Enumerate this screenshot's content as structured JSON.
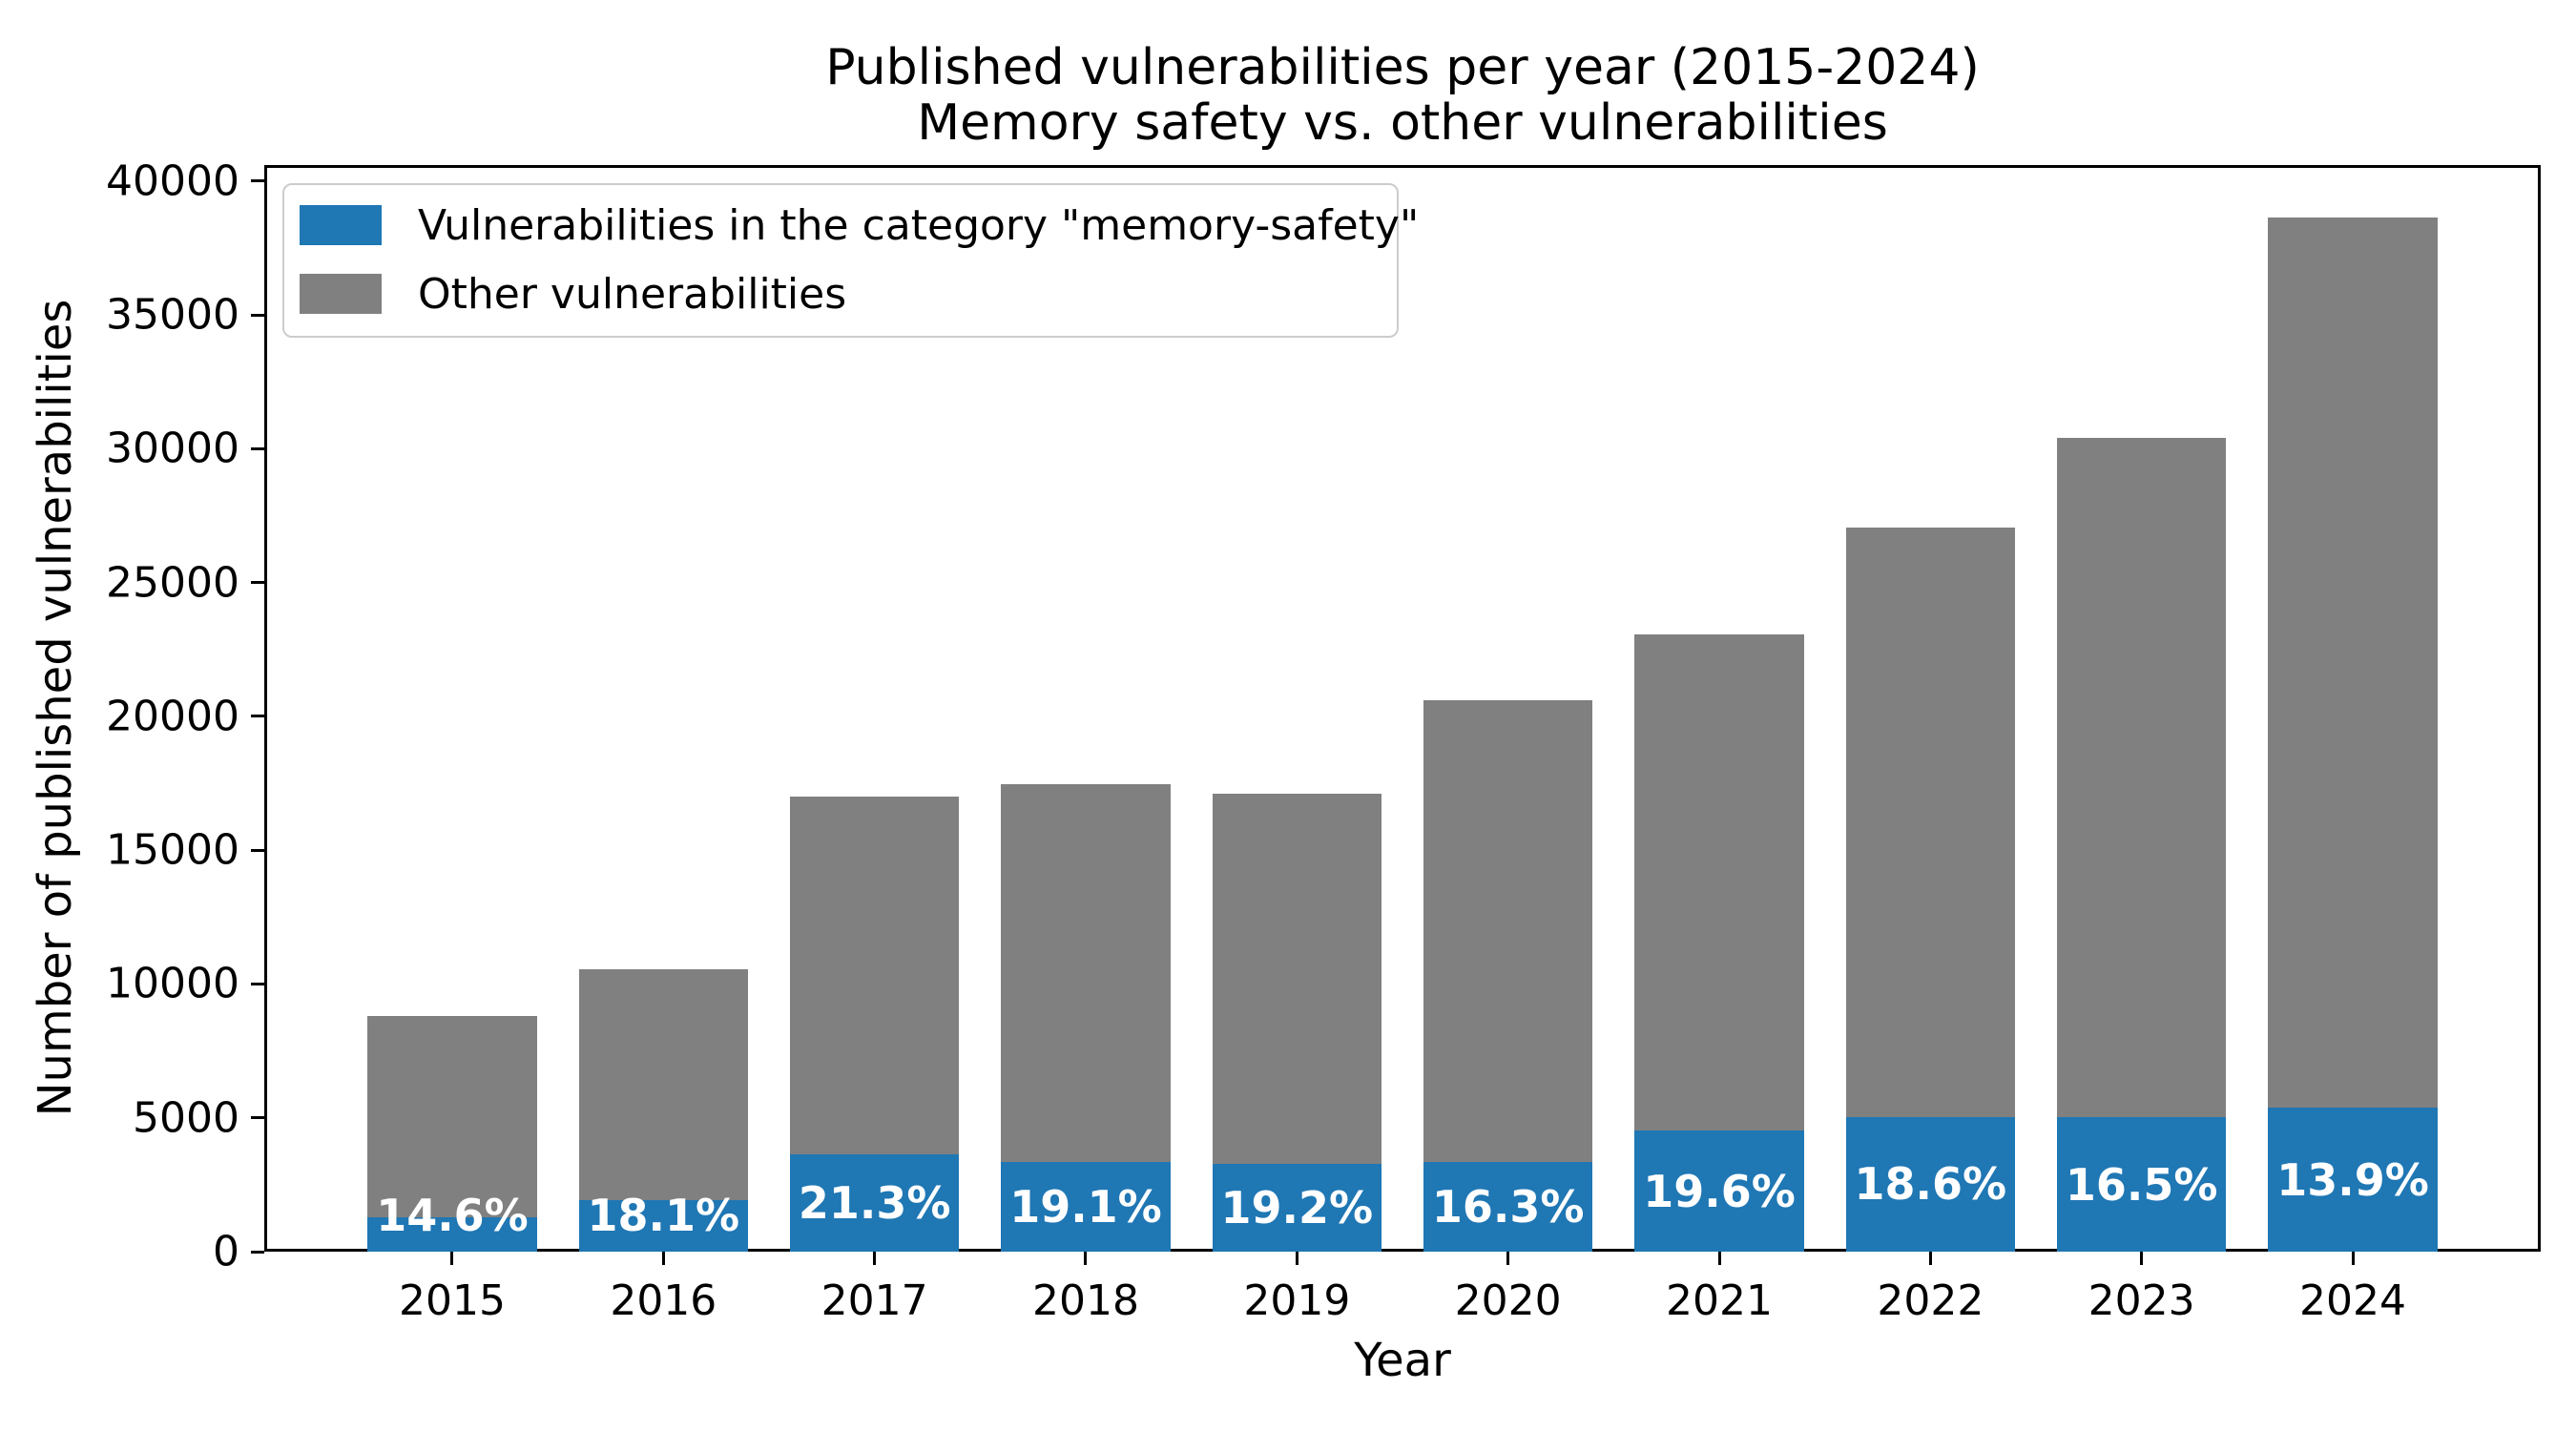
{
  "figure": {
    "title_line1": "Published vulnerabilities per year (2015-2024)",
    "title_line2": "Memory safety vs. other vulnerabilities",
    "xlabel": "Year",
    "ylabel": "Number of published vulnerabilities"
  },
  "legend": {
    "items": [
      {
        "label": "Vulnerabilities in the category \"memory-safety\"",
        "color": "#1f77b4"
      },
      {
        "label": "Other vulnerabilities",
        "color": "#808080"
      }
    ]
  },
  "chart_data": {
    "type": "bar",
    "stacked": true,
    "title": "Published vulnerabilities per year (2015-2024)\nMemory safety vs. other vulnerabilities",
    "xlabel": "Year",
    "ylabel": "Number of published vulnerabilities",
    "categories": [
      2015,
      2016,
      2017,
      2018,
      2019,
      2020,
      2021,
      2022,
      2023,
      2024
    ],
    "series": [
      {
        "name": "Vulnerabilities in the category \"memory-safety\"",
        "color": "#1f77b4",
        "values": [
          1285,
          1910,
          3620,
          3335,
          3285,
          3360,
          4520,
          5030,
          5015,
          5370
        ]
      },
      {
        "name": "Other vulnerabilities",
        "color": "#808080",
        "values": [
          7515,
          8640,
          13380,
          14115,
          13815,
          17240,
          18530,
          22020,
          25385,
          33280
        ]
      }
    ],
    "totals": [
      8800,
      10550,
      17000,
      17450,
      17100,
      20600,
      23050,
      27050,
      30400,
      38650
    ],
    "bar_labels": [
      "14.6%",
      "18.1%",
      "21.3%",
      "19.1%",
      "19.2%",
      "16.3%",
      "19.6%",
      "18.6%",
      "16.5%",
      "13.9%"
    ],
    "ylim": [
      0,
      40600
    ],
    "yticks": [
      0,
      5000,
      10000,
      15000,
      20000,
      25000,
      30000,
      35000,
      40000
    ],
    "xlim": [
      2014.11,
      2024.89
    ],
    "bar_width": 0.8,
    "grid": false,
    "legend_position": "upper left"
  }
}
